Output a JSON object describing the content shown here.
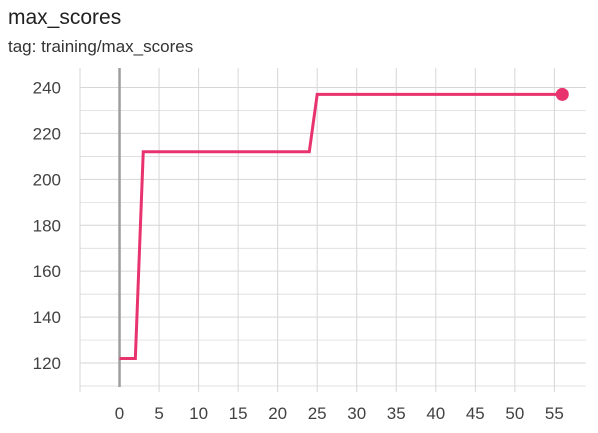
{
  "card": {
    "title": "max_scores",
    "tag": "tag: training/max_scores"
  },
  "chart_data": {
    "type": "line",
    "title": "max_scores",
    "xlabel": "",
    "ylabel": "",
    "xlim": [
      -5,
      59
    ],
    "ylim": [
      110,
      245
    ],
    "x_ticks": [
      0,
      5,
      10,
      15,
      20,
      25,
      30,
      35,
      40,
      45,
      50,
      55
    ],
    "y_ticks": [
      120,
      140,
      160,
      180,
      200,
      220,
      240
    ],
    "grid": true,
    "legend": "none",
    "series": [
      {
        "color": "#e8336e",
        "x": [
          0,
          2,
          3,
          24,
          25,
          56
        ],
        "y": [
          122,
          122,
          212,
          212,
          237,
          237
        ]
      }
    ]
  }
}
